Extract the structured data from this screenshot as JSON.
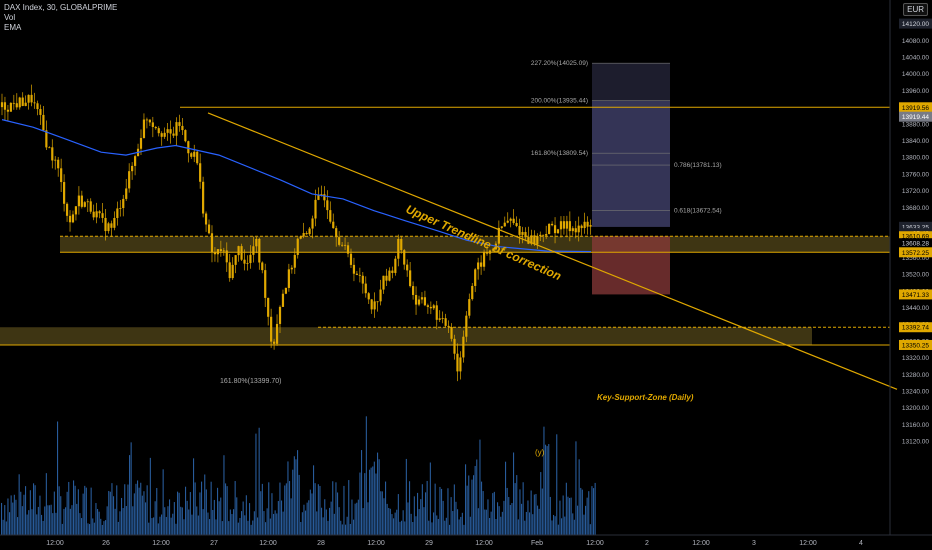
{
  "header": {
    "symbol": "DAX Index, 30, GLOBALPRIME",
    "indicators": [
      "Vol",
      "EMA"
    ],
    "currency": "EUR"
  },
  "annotations": {
    "trendline_label": "Upper Trendline of correction",
    "support_zone_label": "Key-Support-Zone (Daily)",
    "wave_label": "(y)",
    "fib_left_label": "161.80%(13399.70)",
    "fib_right_labels": [
      {
        "text": "227.20%(14025.09)",
        "price": 14025.09
      },
      {
        "text": "200.00%(13935.44)",
        "price": 13935.44
      },
      {
        "text": "161.80%(13809.54)",
        "price": 13809.54
      }
    ],
    "retrace_labels": [
      {
        "text": "0.786(13781.13)",
        "price": 13781.13
      },
      {
        "text": "0.618(13672.54)",
        "price": 13672.54
      }
    ]
  },
  "price_axis": {
    "ticks": [
      14080,
      14040,
      14000,
      13960,
      13920,
      13880,
      13840,
      13800,
      13760,
      13720,
      13680,
      13640,
      13600,
      13560,
      13520,
      13480,
      13440,
      13400,
      13360,
      13320,
      13280,
      13240,
      13200,
      13160,
      13120
    ],
    "tick_labels": [
      "14080.00",
      "14040.00",
      "14000.00",
      "13960.00",
      "13920.00",
      "13880.00",
      "13840.00",
      "13800.00",
      "13760.00",
      "13720.00",
      "13680.00",
      "13640.00",
      "13600.00",
      "13560.00",
      "13520.00",
      "13480.00",
      "13440.00",
      "13400.00",
      "13360.00",
      "13320.00",
      "13280.00",
      "13240.00",
      "13200.00",
      "13160.00",
      "13120.00"
    ],
    "badges": [
      {
        "text": "14120.00",
        "price": 14120.0,
        "bg": "#1e222d",
        "fg": "#d1d4dc"
      },
      {
        "text": "13919.56",
        "price": 13919.56,
        "bg": "#e0a800",
        "fg": "#000000"
      },
      {
        "text": "13919.44",
        "price": 13897.0,
        "bg": "#787b86",
        "fg": "#ffffff"
      },
      {
        "text": "13633.25",
        "price": 13633.25,
        "bg": "#1e222d",
        "fg": "#d1d4dc"
      },
      {
        "text": "05:48",
        "price": 13618.0,
        "bg": "#1e222d",
        "fg": "#d1d4dc"
      },
      {
        "text": "13610.69",
        "price": 13610.69,
        "bg": "#e0a800",
        "fg": "#000000"
      },
      {
        "text": "13608.28",
        "price": 13594.0,
        "bg": "#000000",
        "fg": "#d1d4dc"
      },
      {
        "text": "13572.25",
        "price": 13572.25,
        "bg": "#e0a800",
        "fg": "#000000"
      },
      {
        "text": "13471.33",
        "price": 13471.33,
        "bg": "#e0a800",
        "fg": "#000000"
      },
      {
        "text": "13392.74",
        "price": 13392.74,
        "bg": "#e0a800",
        "fg": "#000000"
      },
      {
        "text": "13350.25",
        "price": 13350.25,
        "bg": "#e0a800",
        "fg": "#000000"
      }
    ]
  },
  "time_axis": {
    "labels": [
      "12:00",
      "26",
      "12:00",
      "27",
      "12:00",
      "28",
      "12:00",
      "29",
      "12:00",
      "Feb",
      "12:00",
      "2",
      "12:00",
      "3",
      "12:00",
      "4"
    ]
  },
  "colors": {
    "background": "#000000",
    "candle": "#e0a800",
    "ema": "#2962ff",
    "volume": "#2f6bb5",
    "trendline": "#e0a800",
    "zone": "#4d4218",
    "fib_upper_box": "#4a4a7a",
    "fib_lower_box": "#8a3a3a"
  },
  "chart_data": {
    "type": "candlestick",
    "title": "DAX Index, 30, GLOBALPRIME",
    "ylim": [
      13100,
      14140
    ],
    "series": [
      {
        "name": "EMA",
        "x": [
          0,
          5,
          10,
          16,
          20,
          25,
          28,
          35,
          45,
          50,
          55,
          60,
          65,
          70,
          75,
          80,
          88,
          95
        ],
        "y": [
          13890,
          13872,
          13845,
          13812,
          13805,
          13822,
          13828,
          13805,
          13745,
          13712,
          13700,
          13672,
          13648,
          13625,
          13601,
          13586,
          13575,
          13574
        ]
      }
    ],
    "price_path": {
      "x": [
        0,
        2,
        3.5,
        4.5,
        5.5,
        6.5,
        8,
        9,
        10.5,
        12,
        13,
        14,
        15,
        16,
        17,
        18,
        19,
        20,
        21,
        22,
        23,
        24,
        25,
        26,
        27,
        28,
        29,
        30,
        31,
        32,
        33,
        34,
        35,
        36,
        37,
        38,
        39,
        40,
        41,
        42,
        43,
        44,
        45,
        46,
        47,
        48,
        49,
        50,
        51,
        52,
        53,
        54,
        55,
        56,
        57,
        58,
        58.5,
        59,
        60,
        61,
        62,
        63,
        64,
        65,
        66,
        67,
        68,
        69,
        70
      ],
      "y": [
        13920,
        13930,
        13940,
        13890,
        13820,
        13780,
        13640,
        13700,
        13680,
        13640,
        13630,
        13690,
        13750,
        13820,
        13900,
        13880,
        13860,
        13850,
        13880,
        13820,
        13800,
        13650,
        13560,
        13580,
        13520,
        13580,
        13540,
        13600,
        13500,
        13340,
        13460,
        13520,
        13600,
        13610,
        13680,
        13720,
        13650,
        13600,
        13560,
        13520,
        13480,
        13440,
        13500,
        13520,
        13600,
        13520,
        13450,
        13450,
        13440,
        13400,
        13400,
        13280,
        13440,
        13520,
        13560,
        13580,
        13600,
        13630,
        13650,
        13630,
        13610,
        13600,
        13620,
        13630,
        13633,
        13633,
        13633,
        13633,
        13633
      ]
    },
    "levels": [
      13919.56,
      13610.69,
      13572.25,
      13392.74,
      13350.25
    ],
    "zones": [
      {
        "label": "Key-Support-Zone (Daily)",
        "top": 13392.74,
        "bottom": 13350.25
      },
      {
        "label": "",
        "top": 13610.69,
        "bottom": 13572.25
      }
    ],
    "trendline": {
      "label": "Upper Trendline of correction",
      "from": [
        32,
        13906
      ],
      "to": [
        157,
        13244
      ]
    },
    "fib_projection": [
      {
        "label": "227.20%",
        "price": 14025.09
      },
      {
        "label": "200.00%",
        "price": 13935.44
      },
      {
        "label": "161.80%",
        "price": 13809.54
      }
    ],
    "volume_note": "relative bar heights"
  }
}
